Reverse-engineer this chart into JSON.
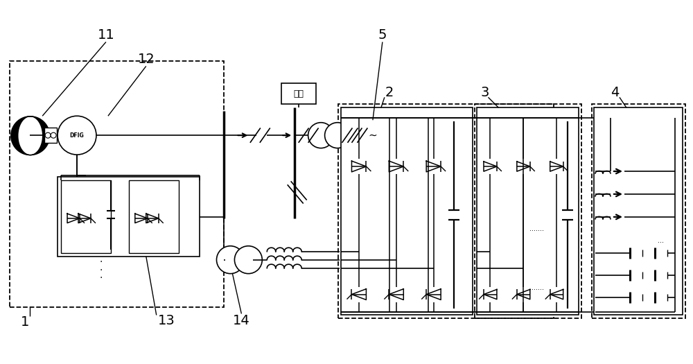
{
  "bg_color": "#ffffff",
  "lc": "#000000",
  "figsize": [
    10.0,
    5.25
  ],
  "dpi": 100,
  "fuzai_text": "负荷",
  "xlim": [
    0,
    10
  ],
  "ylim": [
    0,
    5.25
  ]
}
